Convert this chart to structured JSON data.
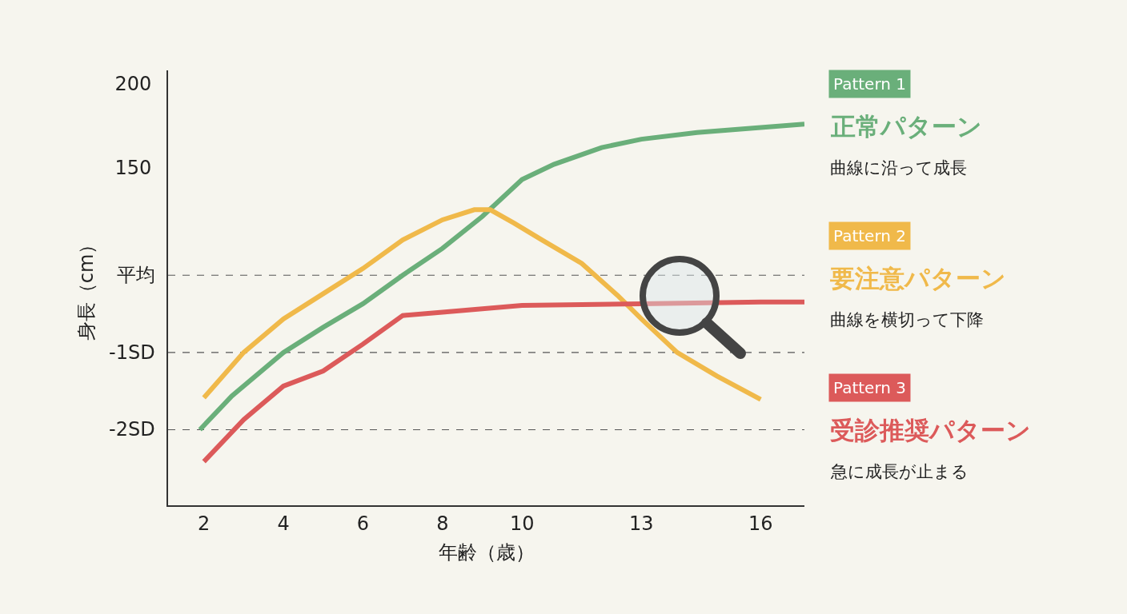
{
  "chart_data": {
    "type": "line",
    "xlabel": "年齢（歳）",
    "ylabel": "身長（cm）",
    "xlim": [
      1.1,
      17.1
    ],
    "xticks": [
      2,
      4,
      6,
      8,
      10,
      13,
      16
    ],
    "ylim": [
      -51,
      208
    ],
    "yticks": [
      200,
      150
    ],
    "ref_lines": [
      {
        "axis": "y",
        "value": 86,
        "label": "平均",
        "line_style": "dashed",
        "color": "#555555"
      },
      {
        "axis": "y",
        "value": 40,
        "label": "-1SD",
        "line_style": "dashed",
        "color": "#555555"
      },
      {
        "axis": "y",
        "value": -6,
        "label": "-2SD",
        "line_style": "dashed",
        "color": "#555555"
      }
    ],
    "series": [
      {
        "name": "正常パターン",
        "color": "#6aaf7a",
        "x": [
          1.9,
          2.7,
          4,
          5,
          6,
          7,
          8,
          9,
          10,
          10.8,
          12,
          13,
          14.4,
          16,
          17.1
        ],
        "values": [
          -6,
          14,
          40,
          55,
          69,
          86,
          102,
          121,
          143,
          152,
          162,
          167,
          171,
          174,
          176
        ]
      },
      {
        "name": "要注意パターン",
        "color": "#f0b94a",
        "x": [
          2,
          3,
          4,
          5,
          6,
          7,
          8,
          8.8,
          9.2,
          9.8,
          10.5,
          11.5,
          12.4,
          13,
          13.9,
          14.9,
          16
        ],
        "values": [
          13,
          40,
          60,
          75,
          90,
          107,
          119,
          125,
          125,
          117,
          107,
          93,
          74,
          60,
          40,
          26,
          12
        ]
      },
      {
        "name": "受診推奨パターン",
        "color": "#dc5a5a",
        "x": [
          2,
          3,
          4,
          5,
          6,
          7,
          8,
          9,
          10,
          13,
          16,
          17.1
        ],
        "values": [
          -25,
          0,
          20,
          29,
          45,
          62,
          64,
          66,
          68,
          69,
          70,
          70
        ]
      }
    ],
    "annotations": [
      "Pattern 1",
      "曲線に沿って成長",
      "Pattern 2",
      "曲線を横切って下降",
      "Pattern 3",
      "急に成長が止まる"
    ],
    "legend": "right",
    "grid": false,
    "marker": "none",
    "line_style": "solid"
  }
}
